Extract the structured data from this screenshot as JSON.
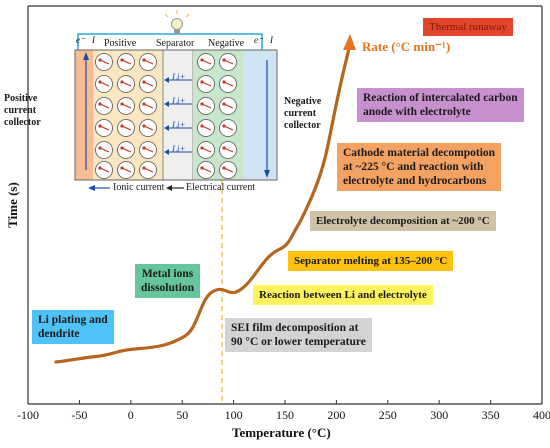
{
  "axes": {
    "xlabel": "Temperature (°C)",
    "ylabel": "Time (s)",
    "x_ticks": [
      "-100",
      "-50",
      "0",
      "50",
      "100",
      "150",
      "200",
      "250",
      "300",
      "350",
      "400"
    ],
    "xlim": [
      -100,
      400
    ]
  },
  "rate_label": "Rate (°C min⁻¹)",
  "stages": {
    "li_plating": [
      "Li plating and",
      "dendrite"
    ],
    "metal_ions": [
      "Metal ions",
      "dissolution"
    ],
    "sei": [
      "SEI film decomposition at",
      "90 °C or lower temperature"
    ],
    "li_electrolyte": "Reaction between Li and electrolyte",
    "separator": "Separator melting at 135–200 °C",
    "electrolyte_decomp": "Electrolyte decomposition at ~200 °C",
    "cathode": [
      "Cathode material decompotion",
      "at ~225 °C and reaction with",
      "electrolyte and hydrocarbons"
    ],
    "anode": [
      "Reaction of intercalated carbon",
      "anode with electrolyte"
    ],
    "thermal_runaway": "Thermal runaway"
  },
  "cell": {
    "positive": "Positive",
    "separator": "Separator",
    "negative": "Negative",
    "e_left": "e⁻",
    "current_left": "I",
    "e_right": "e⁻",
    "current_right": "I",
    "li_ions": [
      "Li+",
      "Li+",
      "Li+",
      "Li+"
    ],
    "positive_collector": [
      "Positive",
      "current",
      "collector"
    ],
    "negative_collector": [
      "Negative",
      "current",
      "collector"
    ],
    "ionic_current": "Ionic current",
    "electrical_current": "Electrical current"
  },
  "colors": {
    "curve": "#b5651d",
    "arrow": "#e8731e",
    "li_plating_bg": "#4fc3f7",
    "metal_ions_bg": "#66c59a",
    "sei_bg": "#d3d3d3",
    "li_electrolyte_bg": "#fff25c",
    "separator_bg": "#ffc20e",
    "electrolyte_decomp_bg": "#cfc2a6",
    "cathode_bg": "#f4a261",
    "anode_bg": "#c990cf",
    "thermal_runaway_bg": "#e2452b",
    "dashed_line": "#f2c94c"
  }
}
